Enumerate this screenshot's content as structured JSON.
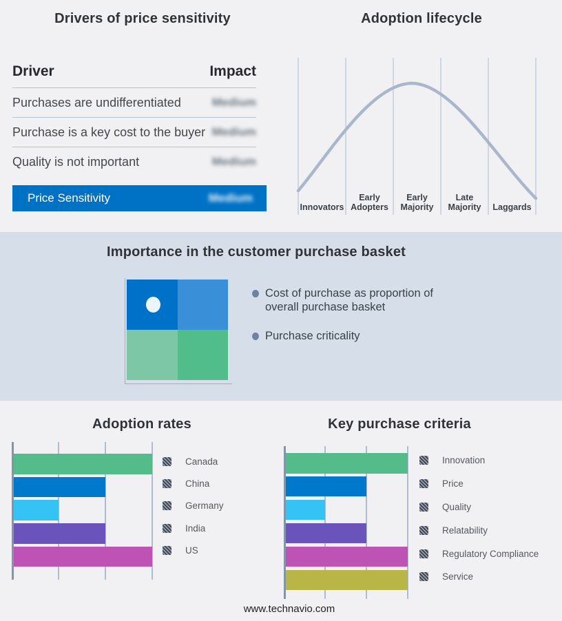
{
  "page": {
    "footer_url": "www.technavio.com",
    "background": "#f1f1f3",
    "band_background": "#d6dfe9",
    "accent_blue": "#0072c6"
  },
  "drivers": {
    "title": "Drivers of price sensitivity",
    "header": {
      "driver": "Driver",
      "impact": "Impact"
    },
    "rows": [
      {
        "driver": "Purchases are undifferentiated",
        "impact": "Medium"
      },
      {
        "driver": "Purchase is a key cost to the buyer",
        "impact": "Medium"
      },
      {
        "driver": "Quality is not important",
        "impact": "Medium"
      }
    ],
    "summary_row": {
      "label": "Price Sensitivity",
      "impact": "Medium"
    },
    "impact_values_blurred": true
  },
  "basket": {
    "title": "Importance in the customer purchase basket",
    "bullets": [
      "Cost of purchase as proportion of overall purchase basket",
      "Purchase criticality"
    ],
    "quadrant": {
      "colors": [
        "#0071c8",
        "#398fd8",
        "#7ec7a6",
        "#50bd8a"
      ],
      "marker": "white dot in top-left quadrant"
    }
  },
  "chart_data": [
    {
      "id": "adoption_lifecycle",
      "type": "line",
      "title": "Adoption lifecycle",
      "categories": [
        "Innovators",
        "Early Adopters",
        "Early Majority",
        "Late Majority",
        "Laggards"
      ],
      "shape": "bell curve rising from Innovators, peaking in Early Majority, falling through Laggards",
      "line_color": "#a9b7cd",
      "grid": "vertical category separator lines",
      "legend_position": "none"
    },
    {
      "id": "adoption_rates",
      "type": "bar",
      "orientation": "horizontal",
      "title": "Adoption rates",
      "categories": [
        "Canada",
        "China",
        "Germany",
        "India",
        "US"
      ],
      "values": [
        3,
        2,
        1,
        2,
        3
      ],
      "xlim": [
        0,
        3
      ],
      "grid": true,
      "colors": [
        "#54bb8b",
        "#0078cc",
        "#35c3f5",
        "#6a53ba",
        "#bf52b5"
      ],
      "legend_position": "right"
    },
    {
      "id": "key_purchase_criteria",
      "type": "bar",
      "orientation": "horizontal",
      "title": "Key purchase criteria",
      "categories": [
        "Innovation",
        "Price",
        "Quality",
        "Relatability",
        "Regulatory Compliance",
        "Service"
      ],
      "values": [
        3,
        2,
        1,
        2,
        3,
        3
      ],
      "xlim": [
        0,
        3
      ],
      "grid": true,
      "colors": [
        "#54bb8b",
        "#0078cc",
        "#35c3f5",
        "#6a53ba",
        "#bf52b5",
        "#b9b546"
      ],
      "legend_position": "right"
    }
  ]
}
